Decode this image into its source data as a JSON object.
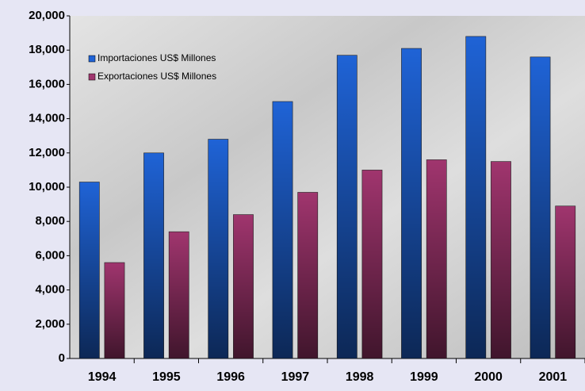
{
  "chart_data": {
    "type": "bar",
    "categories": [
      "1994",
      "1995",
      "1996",
      "1997",
      "1998",
      "1999",
      "2000",
      "2001"
    ],
    "series": [
      {
        "name": "Importaciones US$ Millones",
        "color": "#1f63d6",
        "values": [
          10300,
          12000,
          12800,
          15000,
          17700,
          18100,
          18800,
          17600
        ]
      },
      {
        "name": "Exportaciones US$ Millones",
        "color": "#a0356e",
        "values": [
          5600,
          7400,
          8400,
          9700,
          11000,
          11600,
          11500,
          8900
        ]
      }
    ],
    "ylim": [
      0,
      20000
    ],
    "yticks": [
      0,
      {
        "value": 2000,
        "label": "2,000"
      },
      {
        "value": 4000,
        "label": "4,000"
      },
      {
        "value": 6000,
        "label": "6,000"
      },
      {
        "value": 8000,
        "label": "8,000"
      },
      {
        "value": 10000,
        "label": "10,000"
      },
      {
        "value": 12000,
        "label": "12,000"
      },
      {
        "value": 14000,
        "label": "14,000"
      },
      {
        "value": 16000,
        "label": "16,000"
      },
      {
        "value": 18000,
        "label": "18,000"
      },
      {
        "value": 20000,
        "label": "20,000"
      }
    ],
    "grid": false,
    "legend": "upper left"
  }
}
